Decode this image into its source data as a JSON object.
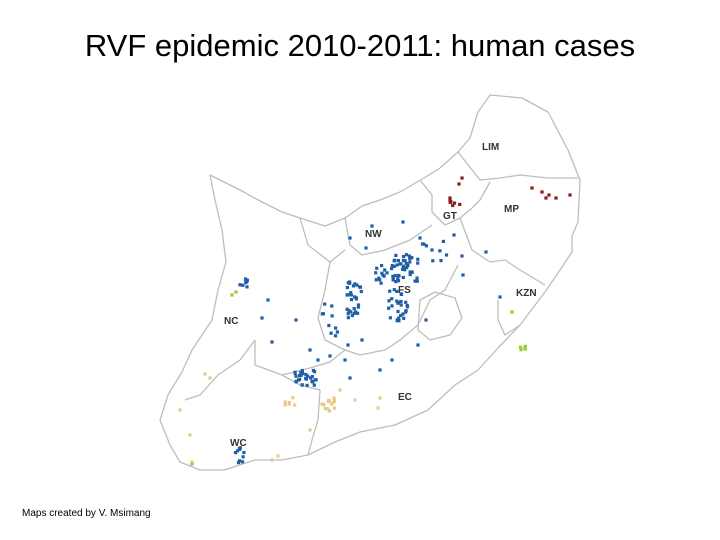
{
  "slide": {
    "title": "RVF epidemic 2010-2011: human cases",
    "credit": "Maps created by V. Msimang"
  },
  "map": {
    "province_labels": [
      {
        "id": "LIM",
        "text": "LIM"
      },
      {
        "id": "MP",
        "text": "MP"
      },
      {
        "id": "GT",
        "text": "GT"
      },
      {
        "id": "NW",
        "text": "NW"
      },
      {
        "id": "FS",
        "text": "FS"
      },
      {
        "id": "KZN",
        "text": "KZN"
      },
      {
        "id": "NC",
        "text": "NC"
      },
      {
        "id": "EC",
        "text": "EC"
      },
      {
        "id": "WC",
        "text": "WC"
      }
    ],
    "case_colors": {
      "blue": "#1f5fa8",
      "dark_red": "#8b1a1a",
      "tan": "#e8c98a",
      "light_green": "#9acd32"
    },
    "outline_color": "#bdbdbd"
  }
}
